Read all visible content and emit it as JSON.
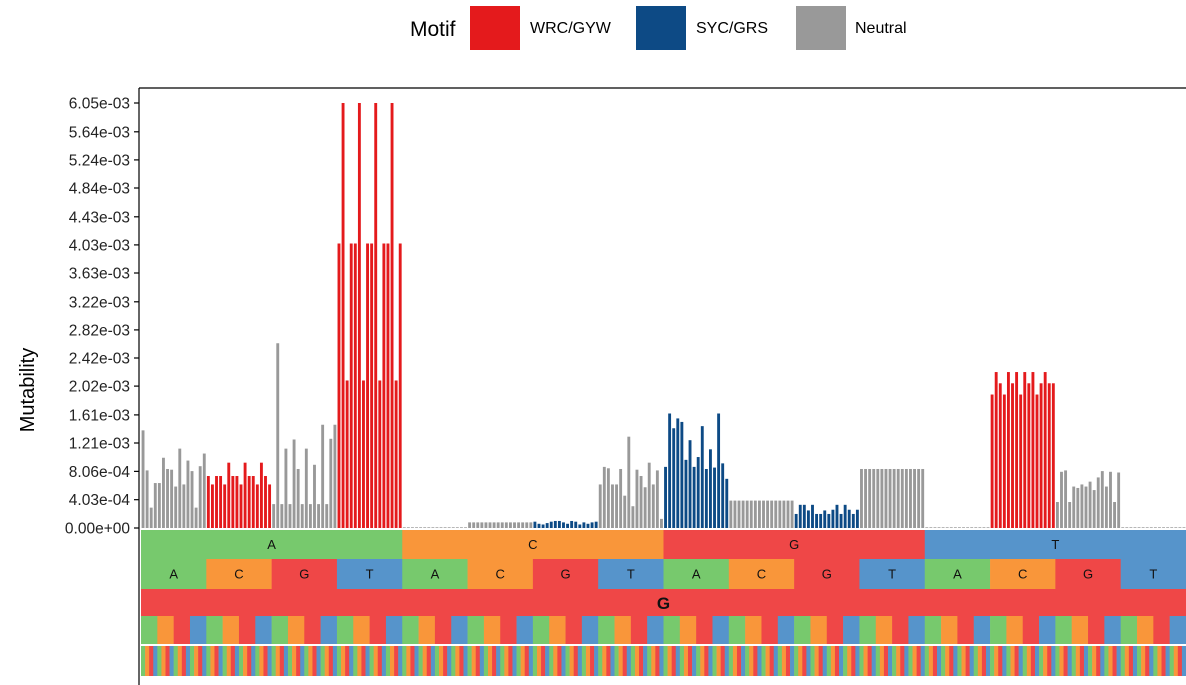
{
  "legend": {
    "title": "Motif",
    "items": [
      {
        "label": "WRC/GYW",
        "color": "#e41a1c"
      },
      {
        "label": "SYC/GRS",
        "color": "#0d4a85"
      },
      {
        "label": "Neutral",
        "color": "#999999"
      }
    ]
  },
  "palette": {
    "A": "#77c96d",
    "C": "#f9963a",
    "G": "#ef4747",
    "T": "#5694cb"
  },
  "chart_data": {
    "type": "bar",
    "ylabel": "Mutability",
    "ylim": [
      0,
      0.00605
    ],
    "ytick_labels": [
      "0.00e+00",
      "4.03e-04",
      "8.06e-04",
      "1.21e-03",
      "1.61e-03",
      "2.02e-03",
      "2.42e-03",
      "2.82e-03",
      "3.22e-03",
      "3.63e-03",
      "4.03e-03",
      "4.43e-03",
      "4.84e-03",
      "5.24e-03",
      "5.64e-03",
      "6.05e-03"
    ],
    "ytick_values": [
      0,
      0.000403,
      0.000806,
      0.00121,
      0.00161,
      0.00202,
      0.00242,
      0.00282,
      0.00322,
      0.00363,
      0.00403,
      0.00443,
      0.00484,
      0.00524,
      0.00564,
      0.00605
    ],
    "center_base": "G",
    "level1": [
      "A",
      "C",
      "G",
      "T"
    ],
    "level2": [
      "A",
      "C",
      "G",
      "T",
      "A",
      "C",
      "G",
      "T",
      "A",
      "C",
      "G",
      "T",
      "A",
      "C",
      "G",
      "T"
    ],
    "level3_bases": [
      "A",
      "C",
      "G",
      "T"
    ],
    "level4_bases": [
      "A",
      "C",
      "G",
      "T"
    ],
    "groups": [
      {
        "motif": [
          "Neutral",
          "Neutral",
          "Neutral",
          "Neutral",
          "Neutral",
          "Neutral",
          "Neutral",
          "Neutral",
          "Neutral",
          "Neutral",
          "Neutral",
          "Neutral",
          "Neutral",
          "Neutral",
          "Neutral",
          "Neutral"
        ],
        "values": [
          0.00139,
          0.00082,
          0.00029,
          0.00064,
          0.00064,
          0.001,
          0.00084,
          0.00083,
          0.00059,
          0.00113,
          0.00062,
          0.00096,
          0.00081,
          0.00029,
          0.00088,
          0.00106
        ]
      },
      {
        "motif": [
          "WRC/GYW",
          "WRC/GYW",
          "WRC/GYW",
          "WRC/GYW",
          "WRC/GYW",
          "WRC/GYW",
          "WRC/GYW",
          "WRC/GYW",
          "WRC/GYW",
          "WRC/GYW",
          "WRC/GYW",
          "WRC/GYW",
          "WRC/GYW",
          "WRC/GYW",
          "WRC/GYW",
          "WRC/GYW"
        ],
        "values": [
          0.00074,
          0.00062,
          0.00074,
          0.00074,
          0.00062,
          0.00093,
          0.00074,
          0.00074,
          0.00062,
          0.00093,
          0.00074,
          0.00074,
          0.00062,
          0.00093,
          0.00074,
          0.00062
        ]
      },
      {
        "motif": [
          "Neutral",
          "Neutral",
          "Neutral",
          "Neutral",
          "Neutral",
          "Neutral",
          "Neutral",
          "Neutral",
          "Neutral",
          "Neutral",
          "Neutral",
          "Neutral",
          "Neutral",
          "Neutral",
          "Neutral",
          "Neutral"
        ],
        "values": [
          0.00034,
          0.00263,
          0.00034,
          0.00113,
          0.00034,
          0.00126,
          0.00084,
          0.00034,
          0.00113,
          0.00034,
          0.0009,
          0.00034,
          0.00147,
          0.00034,
          0.00127,
          0.00147
        ]
      },
      {
        "motif": [
          "WRC/GYW",
          "WRC/GYW",
          "WRC/GYW",
          "WRC/GYW",
          "WRC/GYW",
          "WRC/GYW",
          "WRC/GYW",
          "WRC/GYW",
          "WRC/GYW",
          "WRC/GYW",
          "WRC/GYW",
          "WRC/GYW",
          "WRC/GYW",
          "WRC/GYW",
          "WRC/GYW",
          "WRC/GYW"
        ],
        "values": [
          0.00405,
          0.00605,
          0.0021,
          0.00405,
          0.00405,
          0.00605,
          0.0021,
          0.00405,
          0.00405,
          0.00605,
          0.0021,
          0.00405,
          0.00405,
          0.00605,
          0.0021,
          0.00405
        ]
      },
      {
        "motif": [
          "Neutral",
          "Neutral",
          "Neutral",
          "Neutral",
          "Neutral",
          "Neutral",
          "Neutral",
          "Neutral",
          "Neutral",
          "Neutral",
          "Neutral",
          "Neutral",
          "Neutral",
          "Neutral",
          "Neutral",
          "Neutral"
        ],
        "values": [
          1e-05,
          1e-05,
          1e-05,
          1e-05,
          1e-05,
          1e-05,
          1e-05,
          1e-05,
          1e-05,
          1e-05,
          1e-05,
          1e-05,
          1e-05,
          1e-05,
          1e-05,
          1e-05
        ]
      },
      {
        "motif": [
          "Neutral",
          "Neutral",
          "Neutral",
          "Neutral",
          "Neutral",
          "Neutral",
          "Neutral",
          "Neutral",
          "Neutral",
          "Neutral",
          "Neutral",
          "Neutral",
          "Neutral",
          "Neutral",
          "Neutral",
          "Neutral"
        ],
        "values": [
          8e-05,
          8e-05,
          8e-05,
          8e-05,
          8e-05,
          8e-05,
          8e-05,
          8e-05,
          8e-05,
          8e-05,
          8e-05,
          8e-05,
          8e-05,
          8e-05,
          8e-05,
          8e-05
        ]
      },
      {
        "motif": [
          "SYC/GRS",
          "SYC/GRS",
          "SYC/GRS",
          "SYC/GRS",
          "SYC/GRS",
          "SYC/GRS",
          "SYC/GRS",
          "SYC/GRS",
          "SYC/GRS",
          "SYC/GRS",
          "SYC/GRS",
          "SYC/GRS",
          "SYC/GRS",
          "SYC/GRS",
          "SYC/GRS",
          "SYC/GRS"
        ],
        "values": [
          9e-05,
          6e-05,
          5e-05,
          7e-05,
          9e-05,
          0.0001,
          0.0001,
          8e-05,
          6e-05,
          0.0001,
          9e-05,
          5e-05,
          8e-05,
          6e-05,
          8e-05,
          9e-05
        ]
      },
      {
        "motif": [
          "Neutral",
          "Neutral",
          "Neutral",
          "Neutral",
          "Neutral",
          "Neutral",
          "Neutral",
          "Neutral",
          "Neutral",
          "Neutral",
          "Neutral",
          "Neutral",
          "Neutral",
          "Neutral",
          "Neutral",
          "Neutral"
        ],
        "values": [
          0.00062,
          0.00087,
          0.00085,
          0.00062,
          0.00062,
          0.00084,
          0.00046,
          0.0013,
          0.00031,
          0.00083,
          0.00074,
          0.00058,
          0.00093,
          0.00062,
          0.00082,
          0.00013
        ]
      },
      {
        "motif": [
          "SYC/GRS",
          "SYC/GRS",
          "SYC/GRS",
          "SYC/GRS",
          "SYC/GRS",
          "SYC/GRS",
          "SYC/GRS",
          "SYC/GRS",
          "SYC/GRS",
          "SYC/GRS",
          "SYC/GRS",
          "SYC/GRS",
          "SYC/GRS",
          "SYC/GRS",
          "SYC/GRS",
          "SYC/GRS"
        ],
        "values": [
          0.00087,
          0.00163,
          0.00142,
          0.00156,
          0.00151,
          0.00097,
          0.00125,
          0.00087,
          0.00101,
          0.00145,
          0.00084,
          0.00112,
          0.00086,
          0.00163,
          0.00092,
          0.0007
        ]
      },
      {
        "motif": [
          "Neutral",
          "Neutral",
          "Neutral",
          "Neutral",
          "Neutral",
          "Neutral",
          "Neutral",
          "Neutral",
          "Neutral",
          "Neutral",
          "Neutral",
          "Neutral",
          "Neutral",
          "Neutral",
          "Neutral",
          "Neutral"
        ],
        "values": [
          0.00039,
          0.00039,
          0.00039,
          0.00039,
          0.00039,
          0.00039,
          0.00039,
          0.00039,
          0.00039,
          0.00039,
          0.00039,
          0.00039,
          0.00039,
          0.00039,
          0.00039,
          0.00039
        ]
      },
      {
        "motif": [
          "SYC/GRS",
          "SYC/GRS",
          "SYC/GRS",
          "SYC/GRS",
          "SYC/GRS",
          "SYC/GRS",
          "SYC/GRS",
          "SYC/GRS",
          "SYC/GRS",
          "SYC/GRS",
          "SYC/GRS",
          "SYC/GRS",
          "SYC/GRS",
          "SYC/GRS",
          "SYC/GRS",
          "SYC/GRS"
        ],
        "values": [
          0.0002,
          0.00033,
          0.00033,
          0.00025,
          0.00033,
          0.0002,
          0.0002,
          0.00025,
          0.0002,
          0.00026,
          0.00033,
          0.0002,
          0.00033,
          0.00026,
          0.0002,
          0.00026
        ]
      },
      {
        "motif": [
          "Neutral",
          "Neutral",
          "Neutral",
          "Neutral",
          "Neutral",
          "Neutral",
          "Neutral",
          "Neutral",
          "Neutral",
          "Neutral",
          "Neutral",
          "Neutral",
          "Neutral",
          "Neutral",
          "Neutral",
          "Neutral"
        ],
        "values": [
          0.00084,
          0.00084,
          0.00084,
          0.00084,
          0.00084,
          0.00084,
          0.00084,
          0.00084,
          0.00084,
          0.00084,
          0.00084,
          0.00084,
          0.00084,
          0.00084,
          0.00084,
          0.00084
        ]
      },
      {
        "motif": [
          "Neutral",
          "Neutral",
          "Neutral",
          "Neutral",
          "Neutral",
          "Neutral",
          "Neutral",
          "Neutral",
          "Neutral",
          "Neutral",
          "Neutral",
          "Neutral",
          "Neutral",
          "Neutral",
          "Neutral",
          "Neutral"
        ],
        "values": [
          1e-05,
          1e-05,
          1e-05,
          1e-05,
          1e-05,
          1e-05,
          1e-05,
          1e-05,
          1e-05,
          1e-05,
          1e-05,
          1e-05,
          1e-05,
          1e-05,
          1e-05,
          1e-05
        ]
      },
      {
        "motif": [
          "WRC/GYW",
          "WRC/GYW",
          "WRC/GYW",
          "WRC/GYW",
          "WRC/GYW",
          "WRC/GYW",
          "WRC/GYW",
          "WRC/GYW",
          "WRC/GYW",
          "WRC/GYW",
          "WRC/GYW",
          "WRC/GYW",
          "WRC/GYW",
          "WRC/GYW",
          "WRC/GYW",
          "WRC/GYW"
        ],
        "values": [
          0.0019,
          0.00222,
          0.00206,
          0.0019,
          0.00222,
          0.00206,
          0.00222,
          0.0019,
          0.00222,
          0.00206,
          0.00222,
          0.0019,
          0.00206,
          0.00222,
          0.00206,
          0.00206
        ]
      },
      {
        "motif": [
          "Neutral",
          "Neutral",
          "Neutral",
          "Neutral",
          "Neutral",
          "Neutral",
          "Neutral",
          "Neutral",
          "Neutral",
          "Neutral",
          "Neutral",
          "Neutral",
          "Neutral",
          "Neutral",
          "Neutral",
          "Neutral"
        ],
        "values": [
          0.00037,
          0.0008,
          0.00082,
          0.00037,
          0.00059,
          0.00057,
          0.00062,
          0.00059,
          0.00066,
          0.00054,
          0.00072,
          0.00081,
          0.00059,
          0.0008,
          0.00037,
          0.00079
        ]
      },
      {
        "motif": [
          "Neutral",
          "Neutral",
          "Neutral",
          "Neutral",
          "Neutral",
          "Neutral",
          "Neutral",
          "Neutral",
          "Neutral",
          "Neutral",
          "Neutral",
          "Neutral",
          "Neutral",
          "Neutral",
          "Neutral",
          "Neutral"
        ],
        "values": [
          1e-05,
          1e-05,
          1e-05,
          1e-05,
          1e-05,
          1e-05,
          1e-05,
          1e-05,
          1e-05,
          1e-05,
          1e-05,
          1e-05,
          1e-05,
          1e-05,
          1e-05,
          1e-05
        ]
      }
    ]
  }
}
